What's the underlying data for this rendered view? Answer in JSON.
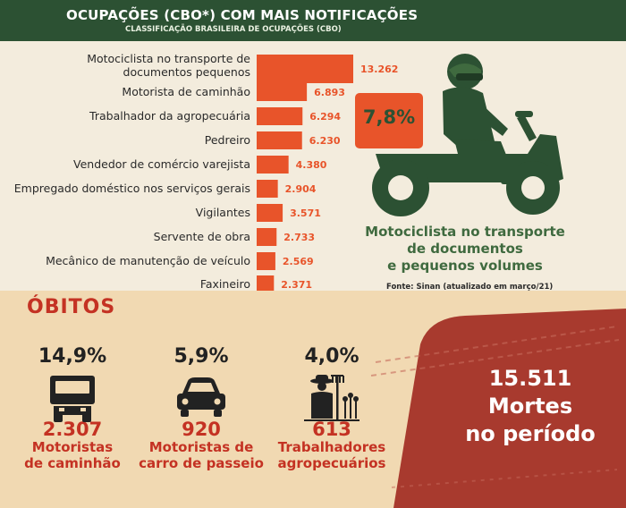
{
  "header": {
    "title": "OCUPAÇÕES (CBO*) COM MAIS NOTIFICAÇÕES",
    "subtitle": "CLASSIFICAÇÃO BRASILEIRA DE OCUPAÇÕES (CBO)"
  },
  "chart_data": {
    "type": "bar",
    "orientation": "horizontal",
    "title": "OCUPAÇÕES (CBO*) COM MAIS NOTIFICAÇÕES",
    "categories": [
      [
        "Motociclista no transporte de",
        "documentos pequenos"
      ],
      [
        "Motorista de caminhão"
      ],
      [
        "Trabalhador da agropecuária"
      ],
      [
        "Pedreiro"
      ],
      [
        "Vendedor de comércio varejista"
      ],
      [
        "Empregado doméstico nos serviços gerais"
      ],
      [
        "Vigilantes"
      ],
      [
        "Servente de obra"
      ],
      [
        "Mecânico de manutenção de veículo"
      ],
      [
        "Faxineiro"
      ]
    ],
    "values": [
      13262,
      6893,
      6294,
      6230,
      4380,
      2904,
      3571,
      2733,
      2569,
      2371
    ],
    "value_labels": [
      "13.262",
      "6.893",
      "6.294",
      "6.230",
      "4.380",
      "2.904",
      "3.571",
      "2.733",
      "2.569",
      "2.371"
    ],
    "bar_color": "#e8542a",
    "grid": false,
    "legend": "none"
  },
  "highlight": {
    "percent": "7,8%",
    "caption_lines": [
      "Motociclista no transporte",
      "de documentos",
      "e pequenos volumes"
    ],
    "source": "Fonte: Sinan (atualizado em março/21)"
  },
  "obitos": {
    "title": "ÓBITOS",
    "items": [
      {
        "percent": "14,9%",
        "count": "2.307",
        "line1": "Motoristas",
        "line2": "de caminhão",
        "icon": "truck-icon"
      },
      {
        "percent": "5,9%",
        "count": "920",
        "line1": "Motoristas de",
        "line2": "carro de passeio",
        "icon": "car-icon"
      },
      {
        "percent": "4,0%",
        "count": "613",
        "line1": "Trabalhadores",
        "line2": "agropecuários",
        "icon": "farmer-icon"
      }
    ],
    "total_lines": [
      "15.511",
      "Mortes",
      "no período"
    ]
  },
  "colors": {
    "header_green": "#2c5133",
    "accent_orange": "#e8542a",
    "deaths_red": "#c43223",
    "band_red": "#a83a2e",
    "background": "#f3ecdd",
    "bottom_background": "#f1d9b2"
  }
}
